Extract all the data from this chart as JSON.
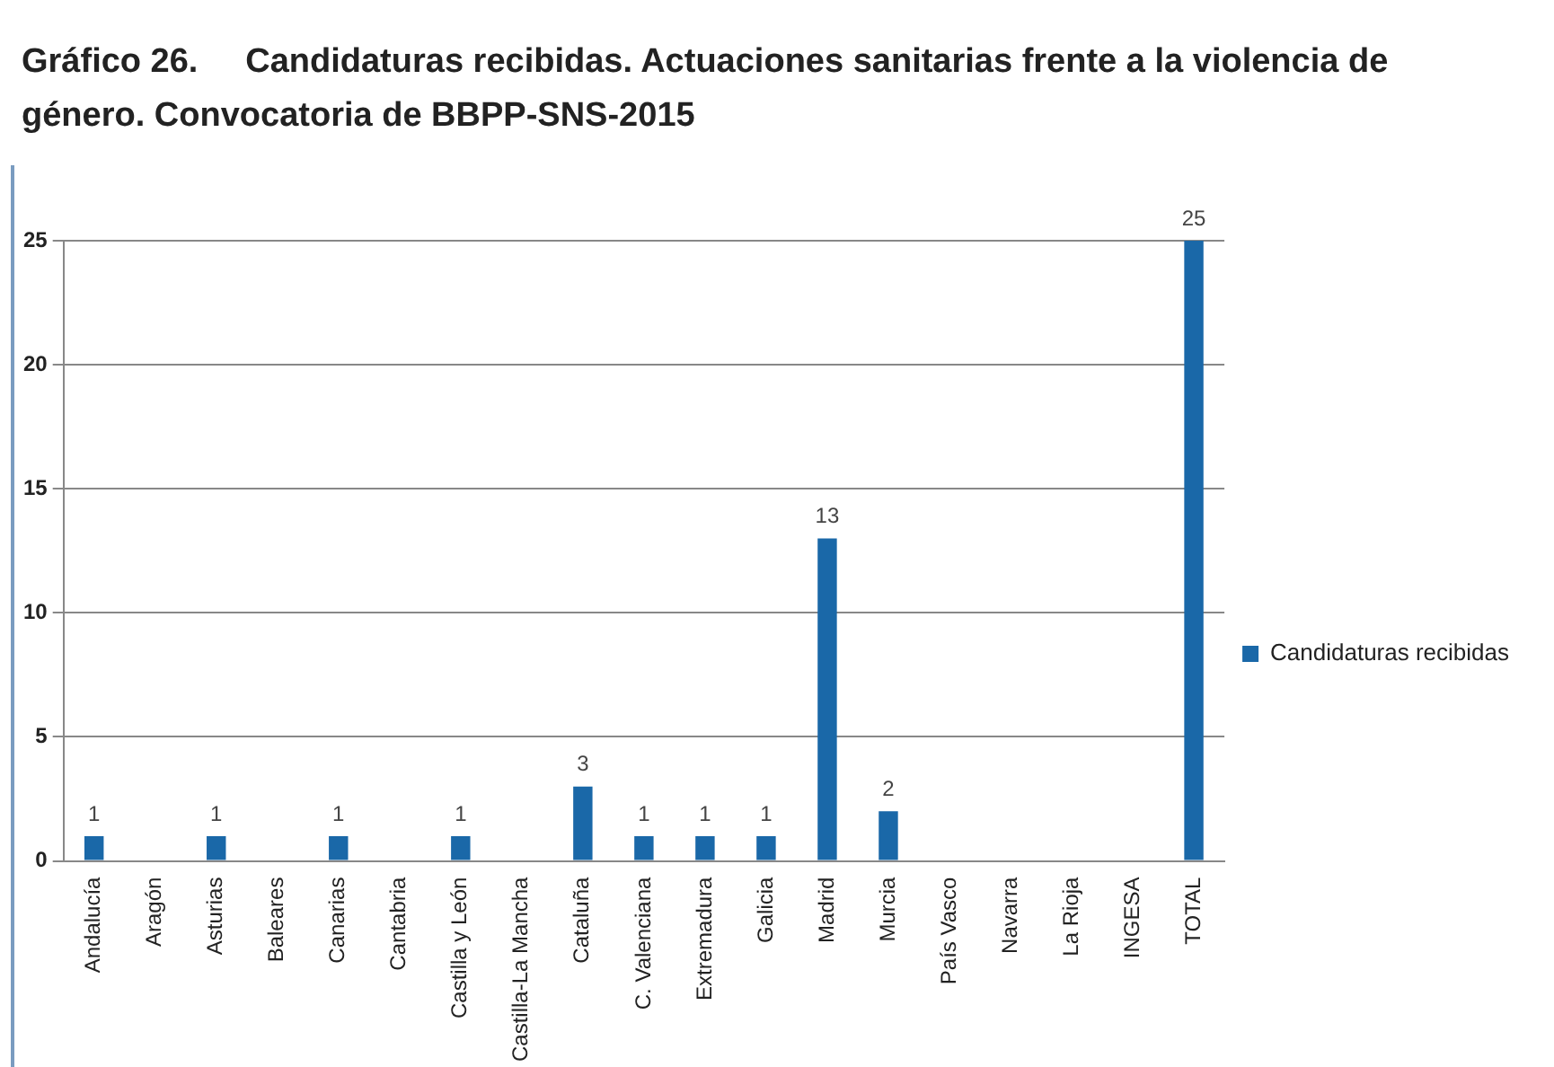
{
  "chart_data": {
    "type": "bar",
    "title": "Gráfico 26.     Candidaturas recibidas. Actuaciones sanitarias frente a la violencia de género. Convocatoria de BBPP-SNS-2015",
    "categories": [
      "Andalucía",
      "Aragón",
      "Asturias",
      "Baleares",
      "Canarias",
      "Cantabria",
      "Castilla y León",
      "Castilla-La Mancha",
      "Cataluña",
      "C. Valenciana",
      "Extremadura",
      "Galicia",
      "Madrid",
      "Murcia",
      "País Vasco",
      "Navarra",
      "La Rioja",
      "INGESA",
      "TOTAL"
    ],
    "series": [
      {
        "name": "Candidaturas recibidas",
        "color": "#1a68a8",
        "values": [
          1,
          0,
          1,
          0,
          1,
          0,
          1,
          0,
          3,
          1,
          1,
          1,
          13,
          2,
          0,
          0,
          0,
          0,
          25
        ],
        "value_labels": [
          "1",
          null,
          "1",
          null,
          "1",
          null,
          "1",
          null,
          "3",
          "1",
          "1",
          "1",
          "13",
          "2",
          null,
          null,
          null,
          null,
          "25"
        ]
      }
    ],
    "ylim": [
      0,
      25
    ],
    "yticks": [
      0,
      5,
      10,
      15,
      20,
      25
    ],
    "grid": "y",
    "legend": "right"
  }
}
